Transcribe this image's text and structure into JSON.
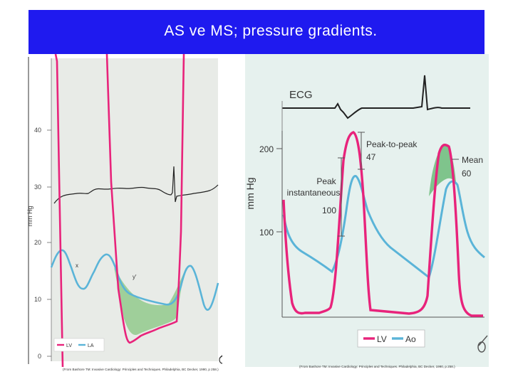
{
  "slide": {
    "title": "AS ve MS;  pressure gradients."
  },
  "left_figure": {
    "y_axis_label": "mm Hg",
    "y_ticks": [
      "40",
      "30",
      "20",
      "10",
      "0"
    ],
    "wave_label_x": "x",
    "wave_label_y": "y'",
    "legend": [
      "LV",
      "LA"
    ],
    "caption": "(From Bashore TM: Invasive Cardiology: Principles and Techniques. Philadelphia, BC Decker, 1990, p 258.)",
    "colors": {
      "lv": "#e8237b",
      "la": "#5ab4d8",
      "gradient_fill": "#9fcf9a",
      "ecg": "#222222"
    }
  },
  "right_figure": {
    "ecg_label": "ECG",
    "y_axis_label": "mm Hg",
    "y_ticks": [
      "200",
      "100"
    ],
    "annotation_peak_to_peak": "Peak-to-peak",
    "annotation_peak_to_peak_value": "47",
    "annotation_mean": "Mean",
    "annotation_mean_value": "60",
    "annotation_peak": "Peak",
    "annotation_instantaneous": "instantaneous",
    "annotation_peak_value": "100",
    "legend": [
      "LV",
      "Ao"
    ],
    "caption": "(From Bashore TM: Invasive Cardiology: Principles and Techniques. Philadelphia, BC Decker, 1990, p 258.)",
    "colors": {
      "lv": "#e8237b",
      "ao": "#5ab4d8",
      "gradient_fill": "#7fc48c",
      "panel_bg": "#e6f1ee"
    }
  }
}
